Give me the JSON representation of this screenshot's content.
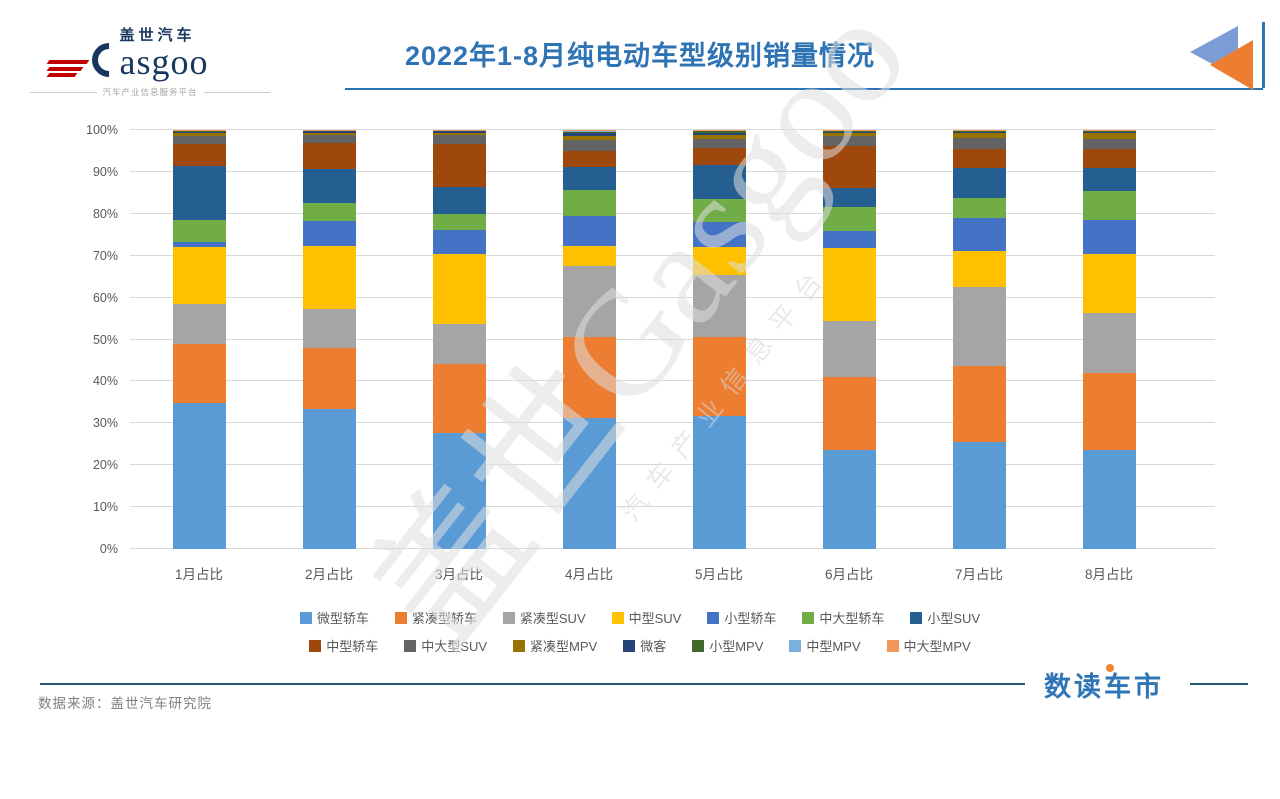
{
  "header": {
    "logo": {
      "cn": "盖世汽车",
      "en": "asgoo",
      "tagline": "汽车产业信息服务平台"
    },
    "title": "2022年1-8月纯电动车型级别销量情况"
  },
  "watermark": {
    "line1": "盖世Gasgoo",
    "line2": "汽车产业信息平台"
  },
  "chart_data": {
    "type": "bar",
    "subtype": "stacked-100-percent",
    "title": "2022年1-8月纯电动车型级别销量情况",
    "categories": [
      "1月占比",
      "2月占比",
      "3月占比",
      "4月占比",
      "5月占比",
      "6月占比",
      "7月占比",
      "8月占比"
    ],
    "series": [
      {
        "name": "微型轿车",
        "color": "#5B9BD5",
        "values": [
          34.8,
          33.4,
          27.6,
          31.2,
          31.8,
          23.6,
          25.5,
          23.6
        ]
      },
      {
        "name": "紧凑型轿车",
        "color": "#ED7D31",
        "values": [
          14.2,
          14.6,
          16.6,
          19.5,
          18.8,
          17.5,
          18.1,
          18.4
        ]
      },
      {
        "name": "紧凑型SUV",
        "color": "#A5A5A5",
        "values": [
          9.6,
          9.3,
          9.4,
          16.8,
          14.7,
          13.3,
          18.9,
          14.4
        ]
      },
      {
        "name": "中型SUV",
        "color": "#FFC000",
        "values": [
          13.4,
          15.0,
          16.8,
          4.9,
          6.8,
          17.5,
          8.7,
          13.9
        ]
      },
      {
        "name": "小型轿车",
        "color": "#4472C4",
        "values": [
          1.4,
          6.0,
          5.7,
          7.0,
          6.0,
          3.9,
          7.7,
          8.3
        ]
      },
      {
        "name": "中大型轿车",
        "color": "#70AD47",
        "values": [
          5.1,
          4.4,
          3.8,
          6.2,
          5.5,
          5.8,
          4.9,
          6.9
        ]
      },
      {
        "name": "小型SUV",
        "color": "#255E91",
        "values": [
          13.0,
          7.9,
          6.6,
          5.7,
          8.1,
          4.6,
          7.2,
          5.5
        ]
      },
      {
        "name": "中型轿车",
        "color": "#9E480E",
        "values": [
          5.2,
          6.4,
          10.2,
          3.7,
          4.0,
          9.9,
          4.5,
          4.4
        ]
      },
      {
        "name": "中大型SUV",
        "color": "#636363",
        "values": [
          1.8,
          1.9,
          2.2,
          2.7,
          2.2,
          2.4,
          2.7,
          2.5
        ]
      },
      {
        "name": "紧凑型MPV",
        "color": "#997300",
        "values": [
          0.7,
          0.5,
          0.5,
          1.0,
          1.0,
          0.7,
          1.1,
          1.5
        ]
      },
      {
        "name": "微客",
        "color": "#264478",
        "values": [
          0.4,
          0.3,
          0.3,
          0.5,
          0.5,
          0.4,
          0.3,
          0.2
        ]
      },
      {
        "name": "小型MPV",
        "color": "#43682B",
        "values": [
          0.2,
          0.1,
          0.1,
          0.4,
          0.3,
          0.2,
          0.2,
          0.2
        ]
      },
      {
        "name": "中型MPV",
        "color": "#7CAFDD",
        "values": [
          0.1,
          0.1,
          0.1,
          0.2,
          0.2,
          0.1,
          0.1,
          0.1
        ]
      },
      {
        "name": "中大型MPV",
        "color": "#F1975A",
        "values": [
          0.1,
          0.1,
          0.1,
          0.2,
          0.1,
          0.1,
          0.1,
          0.1
        ]
      }
    ],
    "y_ticks": [
      "0%",
      "10%",
      "20%",
      "30%",
      "40%",
      "50%",
      "60%",
      "70%",
      "80%",
      "90%",
      "100%"
    ],
    "ylim": [
      0,
      100
    ],
    "grid": true,
    "legend_position": "bottom",
    "legend_rows": [
      7,
      7
    ]
  },
  "footer": {
    "source": "数据来源：盖世汽车研究院",
    "brand": "数读车市"
  },
  "colors": {
    "title_blue": "#2E74B5",
    "footer_line": "#26586B",
    "brand_blue": "#2E75B6",
    "brand_dot_orange": "#F0862B",
    "logo_red": "#C00000",
    "logo_navy": "#17375E",
    "gridline": "#D9D9D9"
  }
}
